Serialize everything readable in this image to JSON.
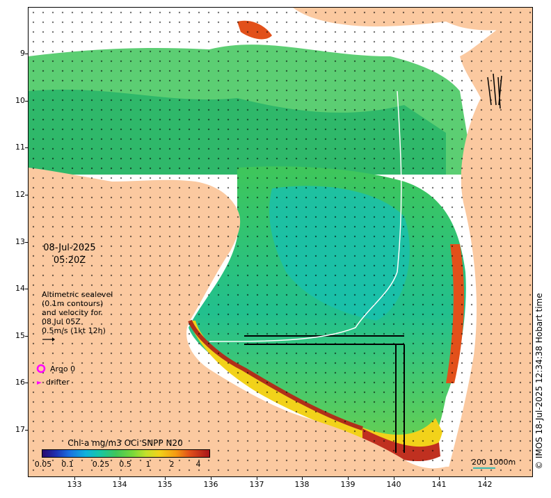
{
  "map": {
    "y_axis_labels": [
      "9",
      "10",
      "11",
      "12",
      "13",
      "14",
      "15",
      "16",
      "17"
    ],
    "x_axis_labels": [
      "133",
      "134",
      "135",
      "136",
      "137",
      "138",
      "139",
      "140",
      "141",
      "142"
    ],
    "date": "08-Jul-2025",
    "time": "05:20Z",
    "altimetry_legend": {
      "line1": "Altimetric sealevel",
      "line2": "(0.1m contours)",
      "line3": "and velocity for",
      "line4": "08 Jul 05Z",
      "line5": "0.5m/s (1kt 12h)"
    },
    "argo_label": "Argo 0",
    "drifter_label": "drifter",
    "colorbar": {
      "title": "Chl-a mg/m3 OCi SNPP N20",
      "tick_labels": [
        "0.05",
        "0.1",
        "0.25",
        "0.5",
        "1",
        "2",
        "4"
      ]
    },
    "scale_label": "200  1000m",
    "credit": "© IMOS 18-Jul-2025 12:34:38 Hobart time",
    "colors": {
      "land": "#fbc9a0",
      "cloud": "#ffffff",
      "chl_low": "#16c6a8",
      "chl_mid": "#3fc65a",
      "chl_high": "#f2d21a",
      "chl_coastal": "#e2501a",
      "argo_marker": "#ff00ff",
      "drifter_marker": "#ff00ff",
      "scale_bar": "#37b7b0"
    }
  }
}
